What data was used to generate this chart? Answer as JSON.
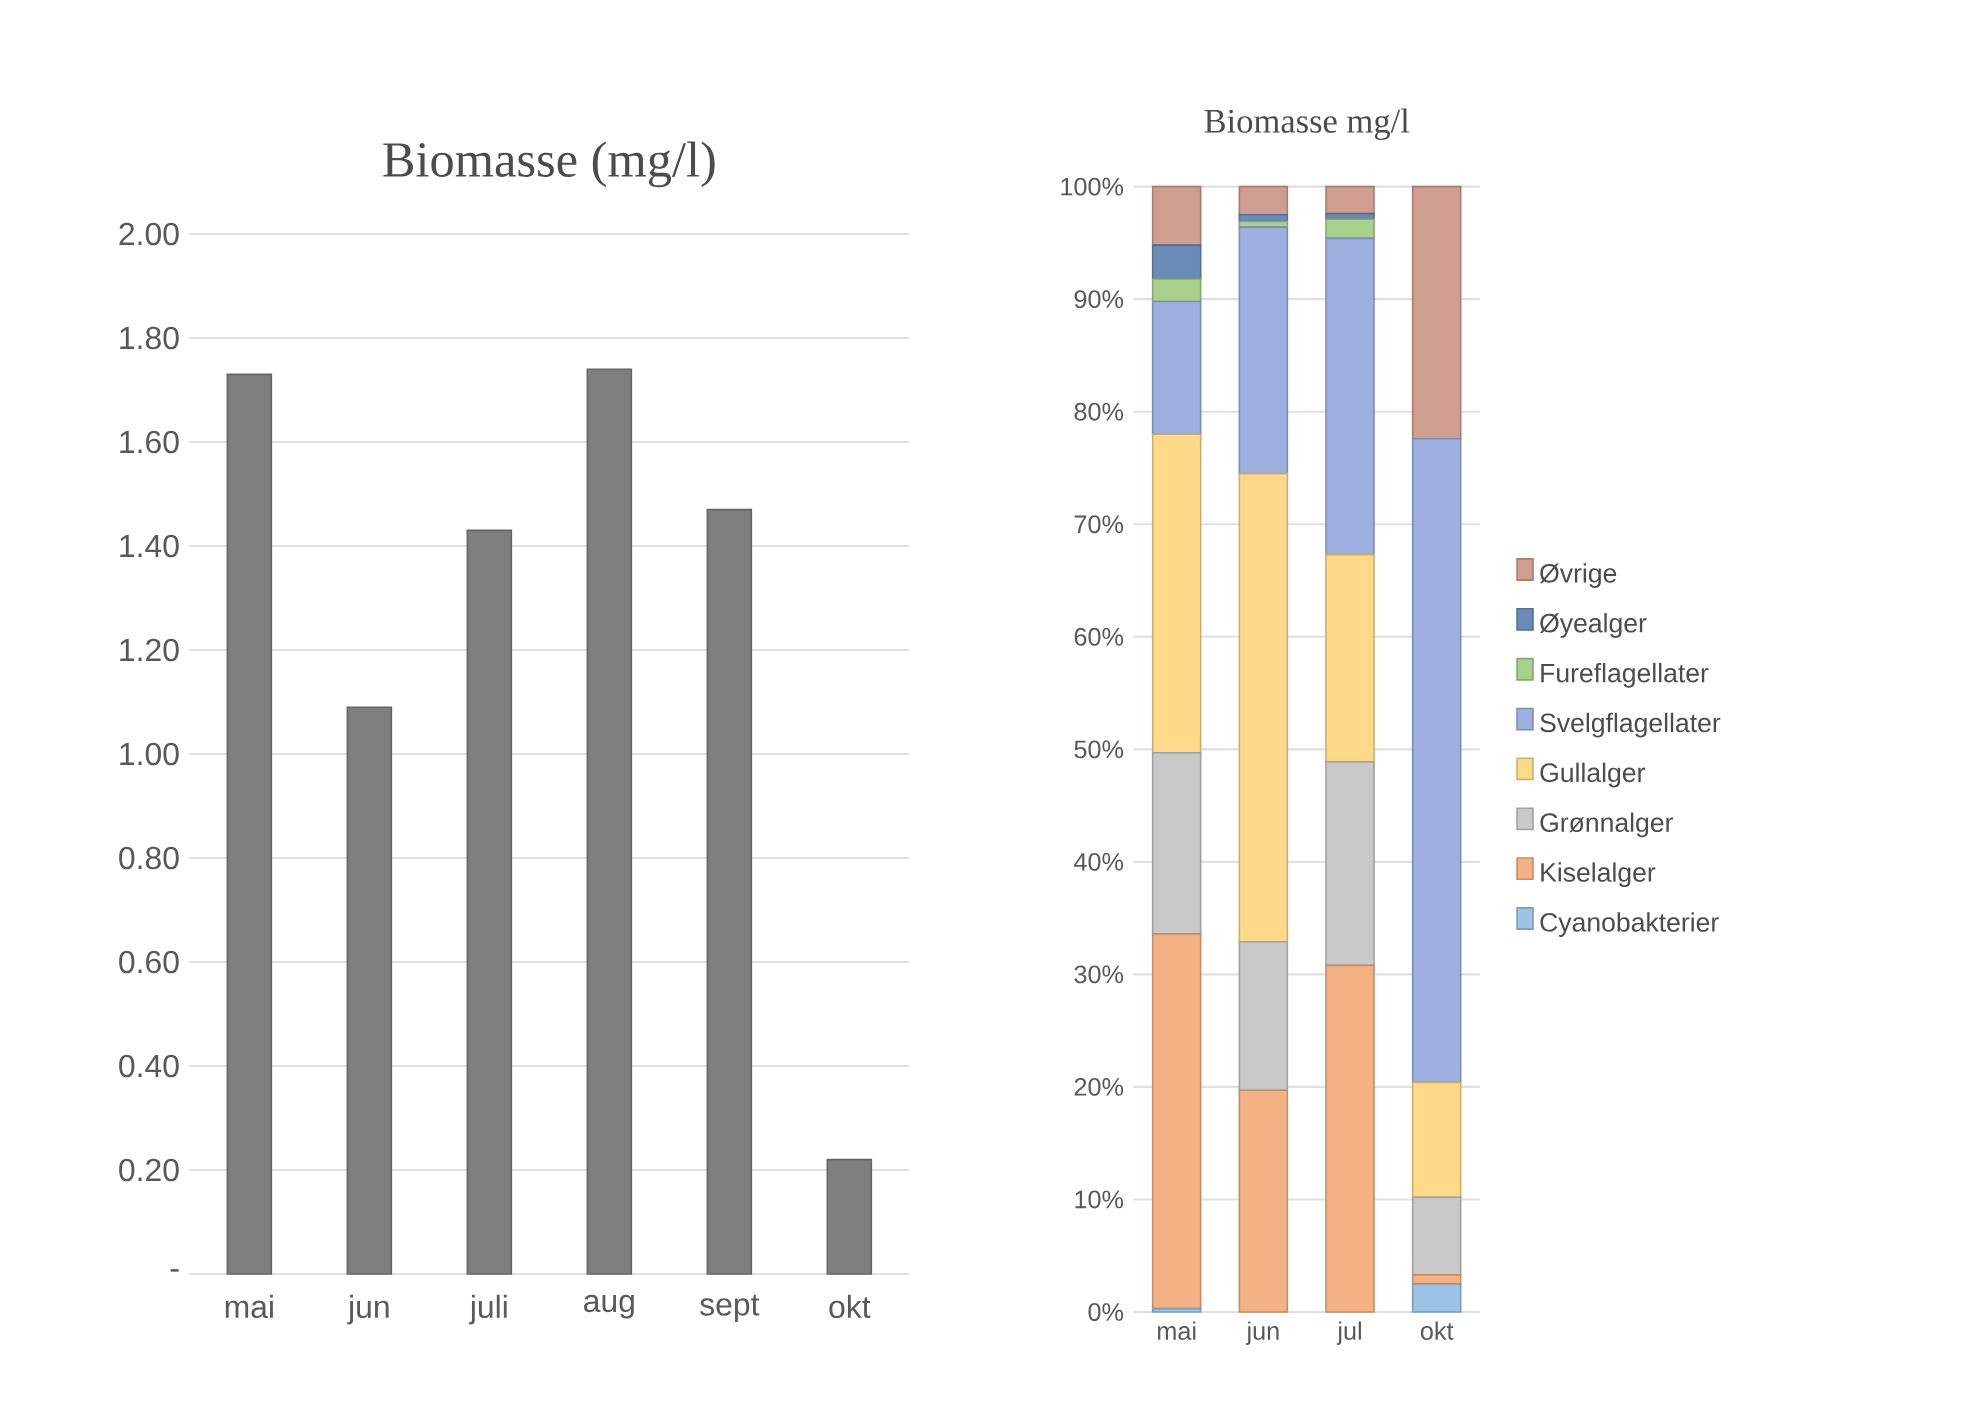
{
  "chart_data": [
    {
      "type": "bar",
      "title": "Biomasse (mg/l)",
      "categories": [
        "mai",
        "jun",
        "juli",
        "aug",
        "sept",
        "okt"
      ],
      "values": [
        1.73,
        1.09,
        1.43,
        1.74,
        1.47,
        0.22
      ],
      "color": "#7f7f7f",
      "ylim": [
        0,
        2
      ],
      "yticks": [
        {
          "value": 0,
          "label": "-"
        },
        {
          "value": 0.2,
          "label": "0.20"
        },
        {
          "value": 0.4,
          "label": "0.40"
        },
        {
          "value": 0.6,
          "label": "0.60"
        },
        {
          "value": 0.8,
          "label": "0.80"
        },
        {
          "value": 1,
          "label": "1.00"
        },
        {
          "value": 1.2,
          "label": "1.20"
        },
        {
          "value": 1.4,
          "label": "1.40"
        },
        {
          "value": 1.6,
          "label": "1.60"
        },
        {
          "value": 1.8,
          "label": "1.80"
        },
        {
          "value": 2,
          "label": "2.00"
        }
      ],
      "grid": "y",
      "legend": false
    },
    {
      "type": "bar",
      "title": "Biomasse mg/l",
      "stacked": true,
      "categories": [
        "mai",
        "jun",
        "jul",
        "okt"
      ],
      "series": [
        {
          "name": "Cyanobakterier",
          "color": "#9dc3e6",
          "values": [
            0.3,
            0,
            0,
            2.5
          ]
        },
        {
          "name": "Kiselalger",
          "color": "#f4b183",
          "values": [
            33.3,
            19.7,
            30.8,
            0.8
          ]
        },
        {
          "name": "Grønnalger",
          "color": "#c9c9c9",
          "values": [
            16.1,
            13.2,
            18.1,
            6.9
          ]
        },
        {
          "name": "Gullalger",
          "color": "#ffd98a",
          "values": [
            28.3,
            41.6,
            18.4,
            10.2
          ]
        },
        {
          "name": "Svelgflagellater",
          "color": "#9eb0e0",
          "values": [
            11.8,
            21.9,
            28.1,
            57.2
          ]
        },
        {
          "name": "Fureflagellater",
          "color": "#a9d18e",
          "values": [
            2.0,
            0.5,
            1.7,
            0
          ]
        },
        {
          "name": "Øyealger",
          "color": "#6a8bb5",
          "values": [
            3.0,
            0.6,
            0.5,
            0
          ]
        },
        {
          "name": "Øvrige",
          "color": "#d09e90",
          "values": [
            5.2,
            2.5,
            2.4,
            22.4
          ]
        }
      ],
      "ylim": [
        0,
        100
      ],
      "yticks": [
        {
          "value": 0,
          "label": "0%"
        },
        {
          "value": 10,
          "label": "10%"
        },
        {
          "value": 20,
          "label": "20%"
        },
        {
          "value": 30,
          "label": "30%"
        },
        {
          "value": 40,
          "label": "40%"
        },
        {
          "value": 50,
          "label": "50%"
        },
        {
          "value": 60,
          "label": "60%"
        },
        {
          "value": 70,
          "label": "70%"
        },
        {
          "value": 80,
          "label": "80%"
        },
        {
          "value": 90,
          "label": "90%"
        },
        {
          "value": 100,
          "label": "100%"
        }
      ],
      "grid": "y",
      "legend": "right"
    }
  ]
}
